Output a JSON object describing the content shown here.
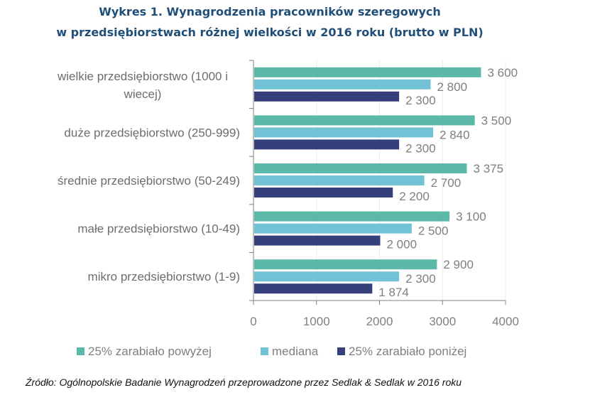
{
  "chart_data": {
    "type": "bar",
    "orientation": "horizontal",
    "title": [
      "Wykres 1. Wynagrodzenia pracowników szeregowych",
      "w przedsiębiorstwach różnej wielkości w 2016 roku (brutto w PLN)"
    ],
    "categories": [
      "wielkie przedsiębiorstwo (1000 i wiecej)",
      "duże przedsiębiorstwo (250-999)",
      "średnie przedsiębiorstwo (50-249)",
      "małe przedsiębiorstwo (10-49)",
      "mikro przedsiębiorstwo (1-9)"
    ],
    "category_lines": [
      [
        "wielkie przedsiębiorstwo (1000 i",
        "wiecej)"
      ],
      [
        "duże przedsiębiorstwo (250-999)"
      ],
      [
        "średnie przedsiębiorstwo (50-249)"
      ],
      [
        "małe przedsiębiorstwo (10-49)"
      ],
      [
        "mikro przedsiębiorstwo (1-9)"
      ]
    ],
    "series": [
      {
        "name": "25% zarabiało powyżej",
        "color": "#5cb8a8",
        "values": [
          3600,
          3500,
          3375,
          3100,
          2900
        ],
        "labels": [
          "3 600",
          "3 500",
          "3 375",
          "3 100",
          "2 900"
        ]
      },
      {
        "name": "mediana",
        "color": "#72c2d6",
        "values": [
          2800,
          2840,
          2700,
          2500,
          2300
        ],
        "labels": [
          "2 800",
          "2 840",
          "2 700",
          "2 500",
          "2 300"
        ]
      },
      {
        "name": "25% zarabiało poniżej",
        "color": "#353f7a",
        "values": [
          2300,
          2300,
          2200,
          2000,
          1874
        ],
        "labels": [
          "2 300",
          "2 300",
          "2 200",
          "2 000",
          "1 874"
        ]
      }
    ],
    "xlim": [
      0,
      4000
    ],
    "xticks": [
      "0",
      "1000",
      "2000",
      "3000",
      "4000"
    ],
    "xtick_values": [
      0,
      1000,
      2000,
      3000,
      4000
    ],
    "grid": true,
    "legend_position": "bottom",
    "xlabel": "",
    "ylabel": ""
  },
  "source": "Źródło: Ogólnopolskie Badanie Wynagrodzeń przeprowadzone przez Sedlak & Sedlak w 2016 roku"
}
